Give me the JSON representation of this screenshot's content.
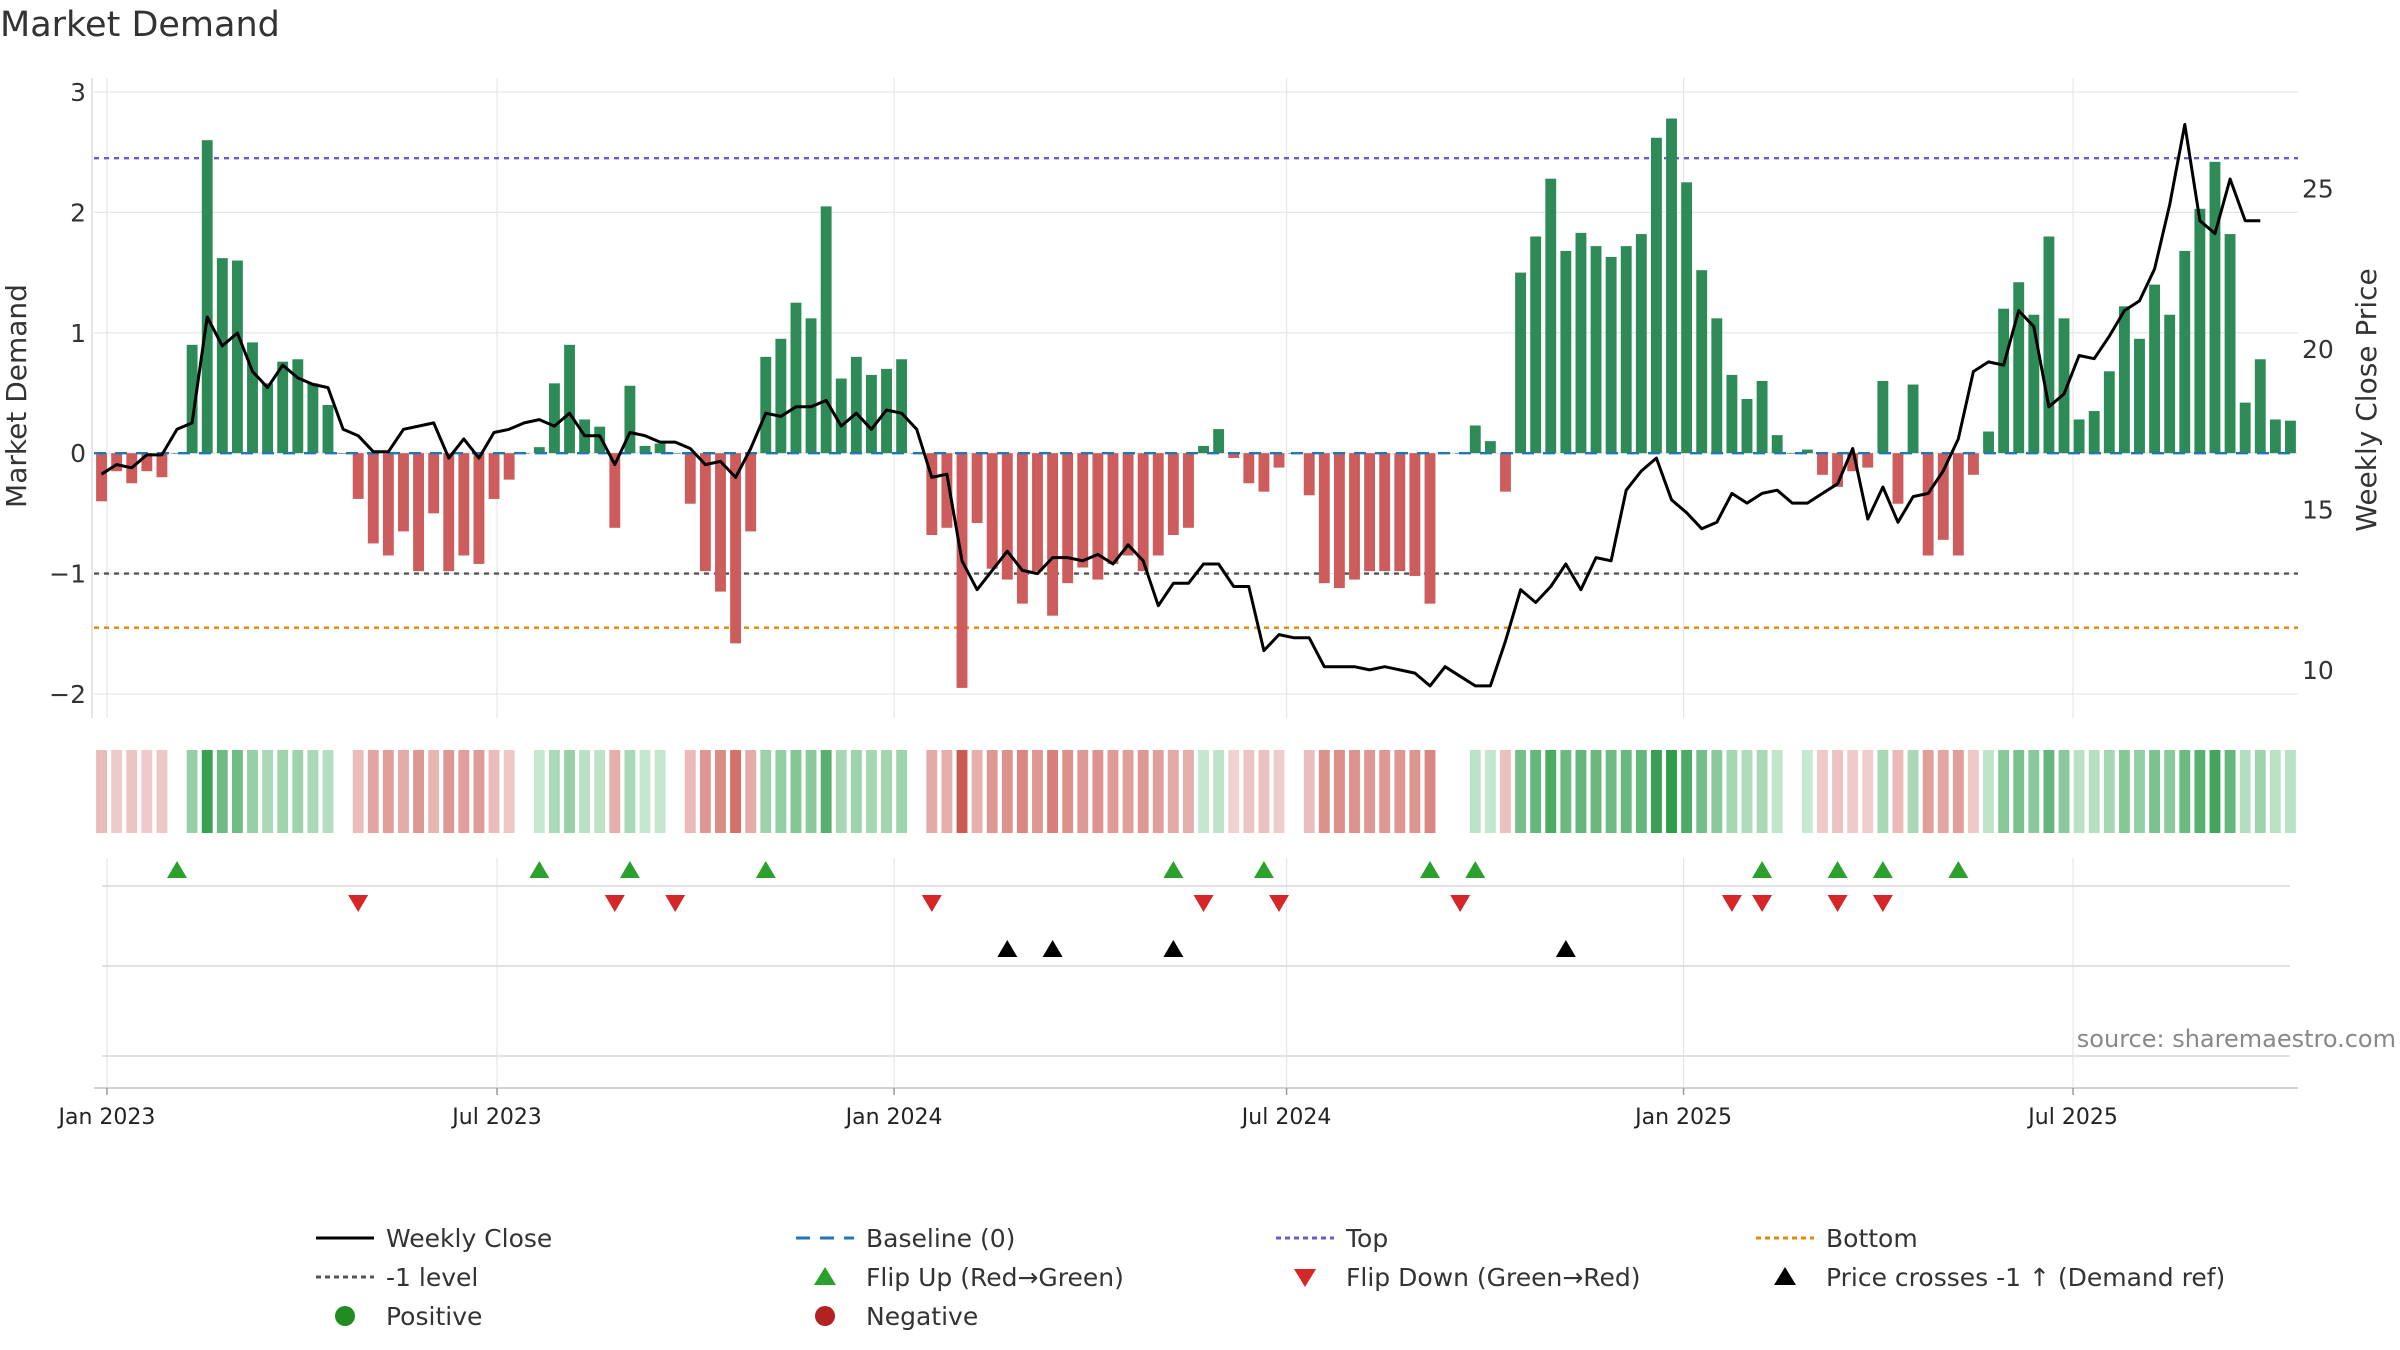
{
  "chart_data": {
    "type": "bar",
    "title": "Market Demand",
    "ylabel_left": "Market Demand",
    "ylabel_right": "Weekly Close Price",
    "source": "source: sharemaestro.com",
    "ylim_left": [
      -2.2,
      3.05
    ],
    "yticks_left": [
      3,
      2,
      1,
      0,
      -1,
      -2
    ],
    "ytick_labels_left": [
      "3",
      "2",
      "1",
      "0",
      "−1",
      "−2"
    ],
    "ylim_right": [
      8.5,
      28.2
    ],
    "yticks_right": [
      25,
      20,
      15,
      10
    ],
    "ytick_labels_right": [
      "25",
      "20",
      "15",
      "10"
    ],
    "x_start": "2022-12-26",
    "xticks": [
      {
        "label": "Jan 2023",
        "week": 0.86
      },
      {
        "label": "Jul 2023",
        "week": 26.7
      },
      {
        "label": "Jan 2024",
        "week": 53.0
      },
      {
        "label": "Jul 2024",
        "week": 79.0
      },
      {
        "label": "Jan 2025",
        "week": 105.3
      },
      {
        "label": "Jul 2025",
        "week": 131.1
      }
    ],
    "reference_lines": {
      "baseline": 0,
      "top": 2.45,
      "level": -1,
      "bottom": -1.45
    },
    "colors": {
      "positive": "#2e8b57",
      "negative": "#cd5c5c",
      "price": "#000000",
      "baseline": "#1f77b4",
      "top": "#6a5acd",
      "level": "#555555",
      "bottom": "#e08a00",
      "flip_up": "#2ca02c",
      "flip_down": "#d62728",
      "cross": "#000000",
      "positive_dot": "#228b22",
      "negative_dot": "#b22222",
      "grid": "#e6e6e6"
    },
    "series": [
      {
        "name": "Market Demand",
        "values": [
          -0.4,
          -0.15,
          -0.25,
          -0.15,
          -0.2,
          0.0,
          0.9,
          2.6,
          1.62,
          1.6,
          0.92,
          0.58,
          0.76,
          0.78,
          0.58,
          0.4,
          0.0,
          -0.38,
          -0.75,
          -0.85,
          -0.65,
          -0.98,
          -0.5,
          -0.98,
          -0.85,
          -0.92,
          -0.38,
          -0.22,
          0.0,
          0.05,
          0.58,
          0.9,
          0.28,
          0.22,
          -0.62,
          0.56,
          0.06,
          0.08,
          0.0,
          -0.42,
          -0.98,
          -1.15,
          -1.58,
          -0.65,
          0.8,
          0.95,
          1.25,
          1.12,
          2.05,
          0.62,
          0.8,
          0.65,
          0.7,
          0.78,
          0.0,
          -0.68,
          -0.62,
          -1.95,
          -0.58,
          -0.96,
          -1.05,
          -1.25,
          -0.98,
          -1.35,
          -1.08,
          -0.95,
          -1.05,
          -0.92,
          -0.85,
          -0.98,
          -0.85,
          -0.68,
          -0.62,
          0.06,
          0.2,
          -0.04,
          -0.25,
          -0.32,
          -0.12,
          0.0,
          -0.35,
          -1.08,
          -1.12,
          -1.05,
          -0.98,
          -0.98,
          -0.98,
          -1.02,
          -1.25,
          0.0,
          0.0,
          0.23,
          0.1,
          -0.32,
          1.5,
          1.8,
          2.28,
          1.68,
          1.83,
          1.72,
          1.63,
          1.72,
          1.82,
          2.62,
          2.78,
          2.25,
          1.52,
          1.12,
          0.65,
          0.45,
          0.6,
          0.15,
          0.0,
          0.03,
          -0.18,
          -0.28,
          -0.15,
          -0.12,
          0.6,
          -0.42,
          0.57,
          -0.85,
          -0.72,
          -0.85,
          -0.18,
          0.18,
          1.2,
          1.42,
          1.15,
          1.8,
          1.12,
          0.28,
          0.35,
          0.68,
          1.22,
          0.95,
          1.4,
          1.15,
          1.68,
          2.03,
          2.42,
          1.82,
          0.42,
          0.78,
          0.28,
          0.27
        ]
      },
      {
        "name": "Weekly Close",
        "values": [
          16.1,
          16.4,
          16.3,
          16.7,
          16.7,
          17.5,
          17.7,
          21.0,
          20.1,
          20.5,
          19.3,
          18.8,
          19.5,
          19.1,
          18.9,
          18.8,
          17.5,
          17.3,
          16.8,
          16.8,
          17.5,
          17.6,
          17.7,
          16.6,
          17.2,
          16.6,
          17.4,
          17.5,
          17.7,
          17.8,
          17.6,
          18.0,
          17.3,
          17.3,
          16.4,
          17.4,
          17.3,
          17.1,
          17.1,
          16.9,
          16.4,
          16.5,
          16.0,
          16.9,
          18.0,
          17.9,
          18.2,
          18.2,
          18.4,
          17.6,
          18.0,
          17.5,
          18.1,
          18.0,
          17.5,
          16.0,
          16.1,
          13.4,
          12.5,
          13.1,
          13.7,
          13.1,
          13.0,
          13.5,
          13.5,
          13.4,
          13.6,
          13.3,
          13.9,
          13.4,
          12.0,
          12.7,
          12.7,
          13.3,
          13.3,
          12.6,
          12.6,
          10.6,
          11.1,
          11.0,
          11.0,
          10.1,
          10.1,
          10.1,
          10.0,
          10.1,
          10.0,
          9.9,
          9.5,
          10.1,
          9.8,
          9.5,
          9.5,
          10.9,
          12.5,
          12.1,
          12.6,
          13.3,
          12.5,
          13.5,
          13.4,
          15.6,
          16.2,
          16.6,
          15.3,
          14.9,
          14.4,
          14.6,
          15.5,
          15.2,
          15.5,
          15.6,
          15.2,
          15.2,
          15.5,
          15.8,
          16.9,
          14.7,
          15.7,
          14.6,
          15.4,
          15.5,
          16.2,
          17.2,
          19.3,
          19.6,
          19.5,
          21.2,
          20.7,
          18.2,
          18.6,
          19.8,
          19.7,
          20.4,
          21.2,
          21.5,
          22.5,
          24.5,
          27.0,
          24.0,
          23.6,
          25.3,
          24.0,
          24.0
        ]
      }
    ],
    "flip_up_weeks": [
      5,
      29,
      35,
      44,
      71,
      77,
      88,
      91,
      110,
      115,
      118,
      123
    ],
    "flip_down_weeks": [
      17,
      34,
      38,
      55,
      73,
      78,
      90,
      108,
      110,
      115,
      118
    ],
    "cross_weeks": [
      60,
      63,
      71,
      97
    ],
    "legend": [
      {
        "label": "Weekly Close",
        "kind": "line-solid"
      },
      {
        "label": "Baseline (0)",
        "kind": "line-dashed"
      },
      {
        "label": "Top",
        "kind": "line-dotted-top"
      },
      {
        "label": "Bottom",
        "kind": "line-dotted-bottom"
      },
      {
        "label": "-1 level",
        "kind": "line-dotted-level"
      },
      {
        "label": "Flip Up (Red→Green)",
        "kind": "tri-up-green"
      },
      {
        "label": "Flip Down (Green→Red)",
        "kind": "tri-down-red"
      },
      {
        "label": "Price crosses -1 ↑ (Demand ref)",
        "kind": "tri-up-black"
      },
      {
        "label": "Positive",
        "kind": "dot-green"
      },
      {
        "label": "Negative",
        "kind": "dot-red"
      }
    ]
  }
}
